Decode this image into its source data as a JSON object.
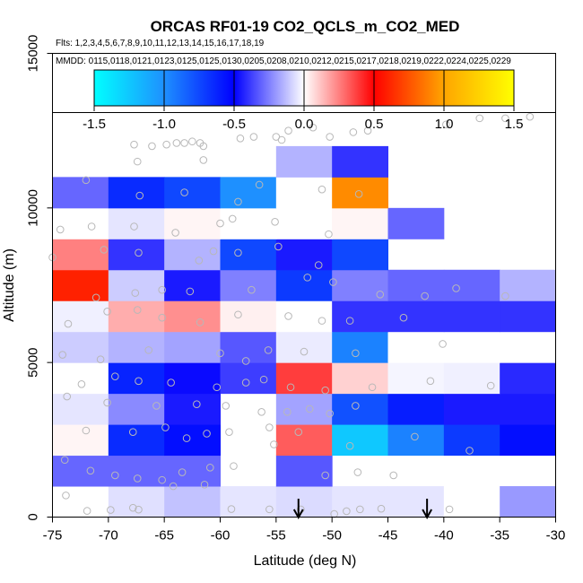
{
  "chart_data": {
    "type": "heatmap",
    "title": "ORCAS RF01-19 CO2_QCLS_m_CO2_MED",
    "flights_text": "Flts: 1,2,3,4,5,6,7,8,9,10,11,12,13,14,15,16,17,18,19",
    "mmdd_text": "MMDD: 0115,0118,0121,0123,0125,0125,0130,0205,0208,0210,0212,0215,0217,0218,0219,0222,0224,0225,0229",
    "xlabel": "Latitude (deg N)",
    "ylabel": "Altitude (m)",
    "xlim": [
      -75,
      -30
    ],
    "ylim": [
      0,
      15000
    ],
    "x_ticks": [
      -75,
      -70,
      -65,
      -60,
      -55,
      -50,
      -45,
      -40,
      -35,
      -30
    ],
    "y_ticks": [
      0,
      5000,
      10000,
      15000
    ],
    "colorbar": {
      "min": -1.5,
      "max": 1.5,
      "ticks": [
        -1.5,
        -1.0,
        -0.5,
        0.0,
        0.5,
        1.0,
        1.5
      ],
      "tick_labels": [
        "-1.5",
        "-1.0",
        "-0.5",
        "0.0",
        "0.5",
        "1.0",
        "1.5"
      ],
      "colors": [
        "#00ffff",
        "#1e90ff",
        "#0000ff",
        "#ffffff",
        "#ff0000",
        "#ffa500",
        "#ffff00"
      ]
    },
    "cell_width_deg": 5,
    "cell_height_m": 1000,
    "cells": [
      {
        "lon": -75,
        "alt": 0,
        "v": 0.0
      },
      {
        "lon": -70,
        "alt": 0,
        "v": -0.06
      },
      {
        "lon": -65,
        "alt": 0,
        "v": -0.12
      },
      {
        "lon": -60,
        "alt": 0,
        "v": -0.05
      },
      {
        "lon": -55,
        "alt": 0,
        "v": -0.07
      },
      {
        "lon": -50,
        "alt": 0,
        "v": -0.05
      },
      {
        "lon": -45,
        "alt": 0,
        "v": -0.05
      },
      {
        "lon": -40,
        "alt": 0,
        "v": 0.0
      },
      {
        "lon": -35,
        "alt": 0,
        "v": -0.2
      },
      {
        "lon": -75,
        "alt": 1000,
        "v": -0.3
      },
      {
        "lon": -70,
        "alt": 1000,
        "v": -0.3
      },
      {
        "lon": -65,
        "alt": 1000,
        "v": -0.3
      },
      {
        "lon": -55,
        "alt": 1000,
        "v": -0.33
      },
      {
        "lon": -75,
        "alt": 2000,
        "v": 0.02
      },
      {
        "lon": -70,
        "alt": 2000,
        "v": -0.65
      },
      {
        "lon": -65,
        "alt": 2000,
        "v": -0.55
      },
      {
        "lon": -55,
        "alt": 2000,
        "v": 0.32
      },
      {
        "lon": -50,
        "alt": 2000,
        "v": -1.25
      },
      {
        "lon": -45,
        "alt": 2000,
        "v": -0.95
      },
      {
        "lon": -40,
        "alt": 2000,
        "v": -0.7
      },
      {
        "lon": -35,
        "alt": 2000,
        "v": -0.55
      },
      {
        "lon": -75,
        "alt": 3000,
        "v": -0.05
      },
      {
        "lon": -70,
        "alt": 3000,
        "v": -0.23
      },
      {
        "lon": -65,
        "alt": 3000,
        "v": -0.45
      },
      {
        "lon": -55,
        "alt": 3000,
        "v": -0.18
      },
      {
        "lon": -50,
        "alt": 3000,
        "v": -0.78
      },
      {
        "lon": -45,
        "alt": 3000,
        "v": -0.6
      },
      {
        "lon": -40,
        "alt": 3000,
        "v": -0.45
      },
      {
        "lon": -35,
        "alt": 3000,
        "v": -0.45
      },
      {
        "lon": -75,
        "alt": 4000,
        "v": 0.0
      },
      {
        "lon": -70,
        "alt": 4000,
        "v": -0.62
      },
      {
        "lon": -65,
        "alt": 4000,
        "v": -0.48
      },
      {
        "lon": -60,
        "alt": 4000,
        "v": -0.38
      },
      {
        "lon": -55,
        "alt": 4000,
        "v": 0.38
      },
      {
        "lon": -50,
        "alt": 4000,
        "v": 0.09
      },
      {
        "lon": -45,
        "alt": 4000,
        "v": -0.02
      },
      {
        "lon": -40,
        "alt": 4000,
        "v": -0.03
      },
      {
        "lon": -35,
        "alt": 4000,
        "v": -0.42
      },
      {
        "lon": -75,
        "alt": 5000,
        "v": -0.1
      },
      {
        "lon": -70,
        "alt": 5000,
        "v": -0.15
      },
      {
        "lon": -65,
        "alt": 5000,
        "v": -0.18
      },
      {
        "lon": -60,
        "alt": 5000,
        "v": -0.33
      },
      {
        "lon": -55,
        "alt": 5000,
        "v": -0.04
      },
      {
        "lon": -50,
        "alt": 5000,
        "v": -0.95
      },
      {
        "lon": -45,
        "alt": 5000,
        "v": 0.0
      },
      {
        "lon": -40,
        "alt": 5000,
        "v": 0.0
      },
      {
        "lon": -35,
        "alt": 5000,
        "v": 0.0
      },
      {
        "lon": -75,
        "alt": 6000,
        "v": -0.03
      },
      {
        "lon": -70,
        "alt": 6000,
        "v": 0.16
      },
      {
        "lon": -65,
        "alt": 6000,
        "v": 0.22
      },
      {
        "lon": -60,
        "alt": 6000,
        "v": 0.03
      },
      {
        "lon": -55,
        "alt": 6000,
        "v": 0.0
      },
      {
        "lon": -50,
        "alt": 6000,
        "v": -0.4
      },
      {
        "lon": -45,
        "alt": 6000,
        "v": -0.4
      },
      {
        "lon": -40,
        "alt": 6000,
        "v": -0.4
      },
      {
        "lon": -35,
        "alt": 6000,
        "v": -0.4
      },
      {
        "lon": -75,
        "alt": 7000,
        "v": 0.6
      },
      {
        "lon": -70,
        "alt": 7000,
        "v": -0.1
      },
      {
        "lon": -65,
        "alt": 7000,
        "v": -0.45
      },
      {
        "lon": -60,
        "alt": 7000,
        "v": -0.25
      },
      {
        "lon": -55,
        "alt": 7000,
        "v": -0.7
      },
      {
        "lon": -50,
        "alt": 7000,
        "v": -0.25
      },
      {
        "lon": -45,
        "alt": 7000,
        "v": -0.3
      },
      {
        "lon": -40,
        "alt": 7000,
        "v": -0.3
      },
      {
        "lon": -35,
        "alt": 7000,
        "v": -0.15
      },
      {
        "lon": -75,
        "alt": 8000,
        "v": 0.25
      },
      {
        "lon": -70,
        "alt": 8000,
        "v": -0.4
      },
      {
        "lon": -65,
        "alt": 8000,
        "v": -0.15
      },
      {
        "lon": -60,
        "alt": 8000,
        "v": -0.75
      },
      {
        "lon": -55,
        "alt": 8000,
        "v": -0.45
      },
      {
        "lon": -50,
        "alt": 8000,
        "v": -0.75
      },
      {
        "lon": -75,
        "alt": 9000,
        "v": 0.0
      },
      {
        "lon": -70,
        "alt": 9000,
        "v": -0.05
      },
      {
        "lon": -65,
        "alt": 9000,
        "v": 0.02
      },
      {
        "lon": -60,
        "alt": 9000,
        "v": 0.0
      },
      {
        "lon": -55,
        "alt": 9000,
        "v": 0.0
      },
      {
        "lon": -50,
        "alt": 9000,
        "v": 0.02
      },
      {
        "lon": -45,
        "alt": 9000,
        "v": -0.3
      },
      {
        "lon": -75,
        "alt": 10000,
        "v": -0.3
      },
      {
        "lon": -70,
        "alt": 10000,
        "v": -0.65
      },
      {
        "lon": -65,
        "alt": 10000,
        "v": -0.75
      },
      {
        "lon": -60,
        "alt": 10000,
        "v": -1.0
      },
      {
        "lon": -55,
        "alt": 10000,
        "v": 0.0
      },
      {
        "lon": -50,
        "alt": 10000,
        "v": 0.92
      },
      {
        "lon": -55,
        "alt": 11000,
        "v": -0.15
      },
      {
        "lon": -50,
        "alt": 11000,
        "v": -0.4
      }
    ],
    "arrows_lat": [
      -53,
      -41.5
    ],
    "points": [
      [
        -73.8,
        700
      ],
      [
        -71.9,
        200
      ],
      [
        -69.8,
        230
      ],
      [
        -67.8,
        300
      ],
      [
        -67.3,
        240
      ],
      [
        -64.2,
        1000
      ],
      [
        -61.4,
        1050
      ],
      [
        -59.0,
        260
      ],
      [
        -55.6,
        250
      ],
      [
        -52.8,
        250
      ],
      [
        -49.8,
        100
      ],
      [
        -48.7,
        190
      ],
      [
        -47.5,
        250
      ],
      [
        -45.6,
        270
      ],
      [
        -39.5,
        250
      ],
      [
        -73.9,
        1850
      ],
      [
        -71.6,
        1500
      ],
      [
        -69.4,
        1350
      ],
      [
        -67.4,
        1250
      ],
      [
        -65.2,
        1200
      ],
      [
        -63.4,
        1450
      ],
      [
        -60.9,
        1600
      ],
      [
        -58.8,
        1650
      ],
      [
        -55.2,
        2350
      ],
      [
        -50.6,
        1350
      ],
      [
        -47.7,
        1450
      ],
      [
        -44.5,
        1350
      ],
      [
        -72.0,
        2800
      ],
      [
        -67.8,
        2750
      ],
      [
        -64.9,
        2900
      ],
      [
        -63.0,
        2550
      ],
      [
        -61.2,
        2700
      ],
      [
        -59.2,
        2750
      ],
      [
        -55.6,
        2900
      ],
      [
        -53.0,
        2750
      ],
      [
        -48.4,
        2300
      ],
      [
        -42.6,
        2600
      ],
      [
        -37.7,
        2150
      ],
      [
        -73.7,
        3900
      ],
      [
        -70.1,
        3700
      ],
      [
        -65.7,
        3600
      ],
      [
        -62.1,
        3650
      ],
      [
        -59.5,
        3600
      ],
      [
        -56.3,
        3400
      ],
      [
        -54.0,
        3400
      ],
      [
        -52.0,
        3500
      ],
      [
        -50.2,
        3350
      ],
      [
        -47.9,
        3600
      ],
      [
        -72.4,
        4300
      ],
      [
        -69.4,
        4550
      ],
      [
        -67.3,
        4400
      ],
      [
        -64.4,
        4350
      ],
      [
        -60.3,
        4200
      ],
      [
        -57.7,
        4350
      ],
      [
        -56.1,
        4450
      ],
      [
        -53.7,
        4200
      ],
      [
        -50.6,
        4100
      ],
      [
        -46.4,
        4200
      ],
      [
        -41.2,
        4400
      ],
      [
        -35.8,
        4250
      ],
      [
        -74.1,
        5250
      ],
      [
        -70.7,
        5100
      ],
      [
        -66.4,
        5400
      ],
      [
        -60.0,
        5300
      ],
      [
        -57.7,
        5050
      ],
      [
        -55.7,
        5400
      ],
      [
        -52.5,
        5350
      ],
      [
        -47.9,
        5300
      ],
      [
        -40.1,
        5600
      ],
      [
        -73.6,
        6250
      ],
      [
        -70.1,
        6650
      ],
      [
        -67.4,
        6700
      ],
      [
        -65.2,
        6450
      ],
      [
        -61.8,
        6300
      ],
      [
        -58.4,
        6550
      ],
      [
        -53.9,
        6500
      ],
      [
        -50.9,
        6350
      ],
      [
        -48.4,
        6350
      ],
      [
        -43.6,
        6450
      ],
      [
        -71.1,
        7100
      ],
      [
        -67.6,
        7250
      ],
      [
        -65.2,
        7350
      ],
      [
        -62.7,
        7300
      ],
      [
        -57.2,
        7350
      ],
      [
        -52.2,
        7750
      ],
      [
        -49.9,
        7600
      ],
      [
        -45.7,
        7200
      ],
      [
        -41.7,
        7150
      ],
      [
        -38.9,
        7400
      ],
      [
        -34.5,
        7150
      ],
      [
        -75.0,
        8400
      ],
      [
        -70.4,
        8650
      ],
      [
        -67.3,
        8550
      ],
      [
        -61.9,
        8300
      ],
      [
        -60.6,
        8600
      ],
      [
        -58.4,
        8550
      ],
      [
        -51.2,
        8150
      ],
      [
        -54.8,
        8750
      ],
      [
        -74.3,
        9300
      ],
      [
        -71.5,
        9400
      ],
      [
        -67.7,
        9400
      ],
      [
        -64.0,
        9200
      ],
      [
        -60.0,
        9500
      ],
      [
        -58.9,
        9650
      ],
      [
        -55.1,
        9550
      ],
      [
        -50.3,
        9150
      ],
      [
        -72.0,
        10900
      ],
      [
        -67.2,
        10400
      ],
      [
        -63.2,
        10500
      ],
      [
        -58.4,
        10200
      ],
      [
        -56.5,
        10750
      ],
      [
        -50.9,
        10600
      ],
      [
        -47.6,
        10450
      ],
      [
        -67.7,
        12050
      ],
      [
        -66.1,
        12000
      ],
      [
        -64.8,
        12050
      ],
      [
        -63.9,
        12100
      ],
      [
        -63.2,
        12100
      ],
      [
        -62.5,
        12150
      ],
      [
        -61.8,
        12100
      ],
      [
        -61.5,
        12000
      ],
      [
        -58.2,
        12250
      ],
      [
        -57.0,
        12300
      ],
      [
        -55.0,
        12300
      ],
      [
        -54.5,
        12200
      ],
      [
        -67.4,
        11500
      ],
      [
        -61.5,
        11550
      ],
      [
        -53.9,
        12500
      ],
      [
        -51.7,
        12600
      ],
      [
        -50.2,
        12300
      ],
      [
        -48.1,
        12450
      ],
      [
        -46.8,
        12500
      ],
      [
        -39.8,
        12700
      ],
      [
        -36.8,
        12900
      ],
      [
        -34.5,
        12900
      ],
      [
        -32.3,
        12950
      ]
    ]
  }
}
